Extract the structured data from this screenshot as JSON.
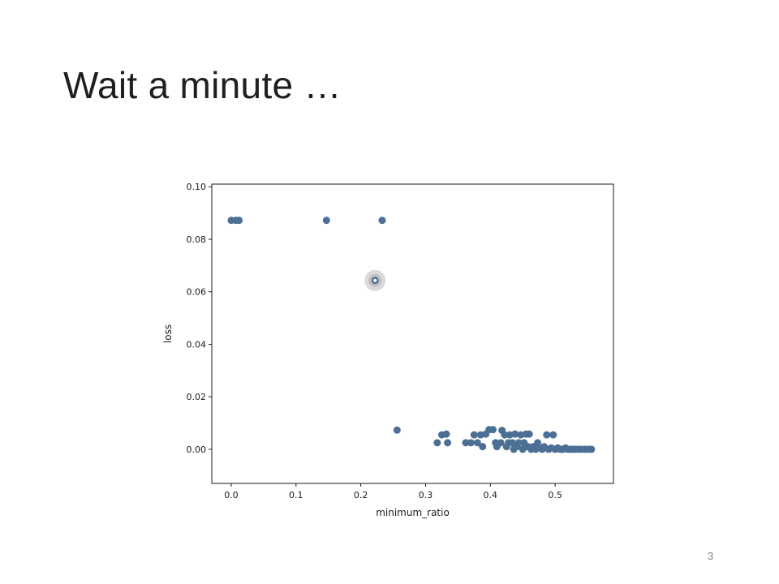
{
  "slide": {
    "title": "Wait a minute …",
    "page_number": "3"
  },
  "chart_data": {
    "type": "scatter",
    "xlabel": "minimum_ratio",
    "ylabel": "loss",
    "xlim": [
      -0.03,
      0.59
    ],
    "ylim": [
      -0.013,
      0.101
    ],
    "xticks": [
      0.0,
      0.1,
      0.2,
      0.3,
      0.4,
      0.5
    ],
    "xtick_labels": [
      "0.0",
      "0.1",
      "0.2",
      "0.3",
      "0.4",
      "0.5"
    ],
    "yticks": [
      0.0,
      0.02,
      0.04,
      0.06,
      0.08,
      0.1
    ],
    "ytick_labels": [
      "0.00",
      "0.02",
      "0.04",
      "0.06",
      "0.08",
      "0.10"
    ],
    "grid": false,
    "point_color": "#4c6f94",
    "highlight": {
      "x": 0.222,
      "y": 0.0643
    },
    "points": [
      {
        "x": 0.0,
        "y": 0.0872
      },
      {
        "x": 0.007,
        "y": 0.0872
      },
      {
        "x": 0.012,
        "y": 0.0872
      },
      {
        "x": 0.147,
        "y": 0.0872
      },
      {
        "x": 0.233,
        "y": 0.0872
      },
      {
        "x": 0.222,
        "y": 0.0643
      },
      {
        "x": 0.256,
        "y": 0.0073
      },
      {
        "x": 0.318,
        "y": 0.0025
      },
      {
        "x": 0.325,
        "y": 0.0055
      },
      {
        "x": 0.332,
        "y": 0.0058
      },
      {
        "x": 0.334,
        "y": 0.0025
      },
      {
        "x": 0.362,
        "y": 0.0025
      },
      {
        "x": 0.37,
        "y": 0.0025
      },
      {
        "x": 0.375,
        "y": 0.0055
      },
      {
        "x": 0.38,
        "y": 0.0025
      },
      {
        "x": 0.385,
        "y": 0.0055
      },
      {
        "x": 0.388,
        "y": 0.001
      },
      {
        "x": 0.393,
        "y": 0.0058
      },
      {
        "x": 0.398,
        "y": 0.0075
      },
      {
        "x": 0.404,
        "y": 0.0075
      },
      {
        "x": 0.408,
        "y": 0.0025
      },
      {
        "x": 0.41,
        "y": 0.001
      },
      {
        "x": 0.416,
        "y": 0.0025
      },
      {
        "x": 0.418,
        "y": 0.0072
      },
      {
        "x": 0.422,
        "y": 0.0055
      },
      {
        "x": 0.425,
        "y": 0.001
      },
      {
        "x": 0.428,
        "y": 0.0025
      },
      {
        "x": 0.43,
        "y": 0.0055
      },
      {
        "x": 0.434,
        "y": 0.0025
      },
      {
        "x": 0.436,
        "y": 0.0
      },
      {
        "x": 0.438,
        "y": 0.0058
      },
      {
        "x": 0.441,
        "y": 0.001
      },
      {
        "x": 0.444,
        "y": 0.0025
      },
      {
        "x": 0.447,
        "y": 0.0055
      },
      {
        "x": 0.45,
        "y": 0.0
      },
      {
        "x": 0.452,
        "y": 0.0025
      },
      {
        "x": 0.455,
        "y": 0.0058
      },
      {
        "x": 0.458,
        "y": 0.001
      },
      {
        "x": 0.46,
        "y": 0.0058
      },
      {
        "x": 0.463,
        "y": 0.0
      },
      {
        "x": 0.466,
        "y": 0.001
      },
      {
        "x": 0.47,
        "y": 0.0
      },
      {
        "x": 0.473,
        "y": 0.0025
      },
      {
        "x": 0.476,
        "y": 0.0005
      },
      {
        "x": 0.48,
        "y": 0.0
      },
      {
        "x": 0.483,
        "y": 0.001
      },
      {
        "x": 0.487,
        "y": 0.0055
      },
      {
        "x": 0.49,
        "y": 0.0
      },
      {
        "x": 0.494,
        "y": 0.0005
      },
      {
        "x": 0.497,
        "y": 0.0055
      },
      {
        "x": 0.5,
        "y": 0.0
      },
      {
        "x": 0.504,
        "y": 0.0005
      },
      {
        "x": 0.508,
        "y": 0.0
      },
      {
        "x": 0.512,
        "y": 0.0
      },
      {
        "x": 0.516,
        "y": 0.0005
      },
      {
        "x": 0.52,
        "y": 0.0
      },
      {
        "x": 0.525,
        "y": 0.0
      },
      {
        "x": 0.53,
        "y": 0.0
      },
      {
        "x": 0.535,
        "y": 0.0
      },
      {
        "x": 0.54,
        "y": 0.0
      },
      {
        "x": 0.546,
        "y": 0.0
      },
      {
        "x": 0.552,
        "y": 0.0
      },
      {
        "x": 0.556,
        "y": 0.0
      }
    ]
  }
}
